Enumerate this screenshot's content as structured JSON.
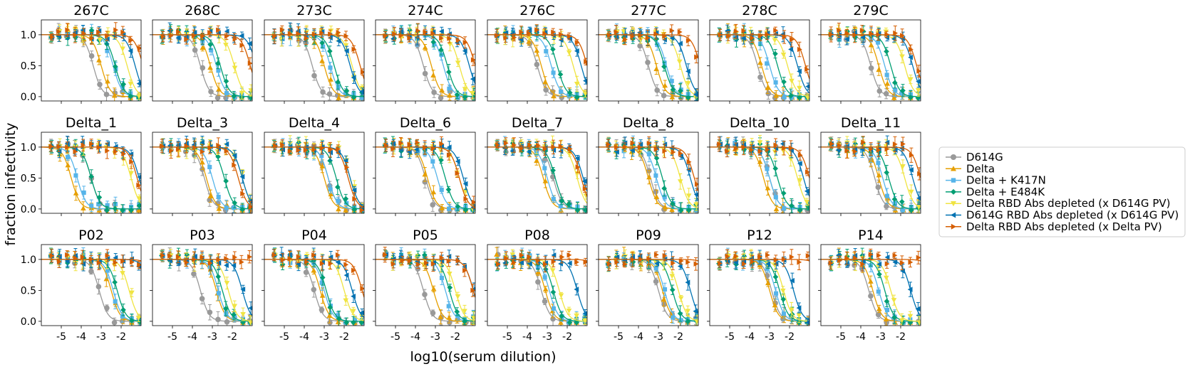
{
  "chart_data": {
    "type": "line",
    "figure": {
      "xlabel": "log10(serum dilution)",
      "ylabel": "fraction infectivity",
      "xlim": [
        -6.0,
        -1.0
      ],
      "ylim": [
        -0.07,
        1.24
      ],
      "x_ticks": [
        -5,
        -4,
        -3,
        -2
      ],
      "x_tick_labels": [
        "-5",
        "-4",
        "-3",
        "-2"
      ],
      "y_ticks": [
        0.0,
        0.5,
        1.0
      ],
      "y_tick_labels": [
        "0.0",
        "0.5",
        "1.0"
      ],
      "grid": false,
      "legend_position": "right"
    },
    "series": [
      {
        "name": "D614G",
        "color": "#999999",
        "marker": "circle"
      },
      {
        "name": "Delta",
        "color": "#E69F00",
        "marker": "triangle-up"
      },
      {
        "name": "Delta + K417N",
        "color": "#56B4E9",
        "marker": "square"
      },
      {
        "name": "Delta + E484K",
        "color": "#009E73",
        "marker": "diamond"
      },
      {
        "name": "Delta RBD Abs depleted (x D614G PV)",
        "color": "#F0E442",
        "marker": "triangle-down"
      },
      {
        "name": "D614G RBD Abs depleted (x D614G PV)",
        "color": "#0072B2",
        "marker": "triangle-left"
      },
      {
        "name": "Delta RBD Abs depleted (x Delta PV)",
        "color": "#D55E00",
        "marker": "triangle-right"
      }
    ],
    "panels": [
      {
        "title": "267C",
        "ic50": [
          -3.4,
          -3.0,
          -2.4,
          -2.3,
          -1.7,
          -1.3,
          -0.9
        ]
      },
      {
        "title": "268C",
        "ic50": [
          -3.6,
          -3.1,
          -2.8,
          -2.6,
          -1.9,
          -0.8,
          -1.1
        ]
      },
      {
        "title": "273C",
        "ic50": [
          -3.6,
          -3.0,
          -2.7,
          -2.5,
          -1.6,
          -1.7,
          -1.2
        ]
      },
      {
        "title": "274C",
        "ic50": [
          -3.6,
          -3.2,
          -2.6,
          -2.4,
          -1.8,
          -1.3,
          -1.0
        ]
      },
      {
        "title": "276C",
        "ic50": [
          -3.5,
          -3.3,
          -2.8,
          -2.5,
          -1.7,
          -1.3,
          -1.0
        ]
      },
      {
        "title": "277C",
        "ic50": [
          -3.5,
          -3.1,
          -2.6,
          -2.7,
          -1.9,
          -1.6,
          -0.9
        ]
      },
      {
        "title": "278C",
        "ic50": [
          -3.6,
          -3.4,
          -3.0,
          -2.6,
          -2.1,
          -1.6,
          -1.2
        ]
      },
      {
        "title": "279C",
        "ic50": [
          -3.5,
          -3.1,
          -2.8,
          -2.5,
          -1.8,
          -1.4,
          -1.2
        ]
      },
      {
        "title": "Delta_1",
        "ic50": [
          -3.5,
          -4.5,
          -4.2,
          -3.5,
          -1.5,
          -1.1,
          -1.2
        ]
      },
      {
        "title": "Delta_3",
        "ic50": [
          -3.4,
          -3.3,
          -3.0,
          -2.4,
          -1.5,
          -1.5,
          -1.7
        ]
      },
      {
        "title": "Delta_4",
        "ic50": [
          -2.8,
          -3.0,
          -2.8,
          -2.4,
          -1.7,
          -1.7,
          -1.8
        ]
      },
      {
        "title": "Delta_6",
        "ic50": [
          -3.5,
          -3.4,
          -2.9,
          -2.5,
          -1.8,
          -1.6,
          -1.8
        ]
      },
      {
        "title": "Delta_7",
        "ic50": [
          -2.7,
          -3.2,
          -3.0,
          -2.6,
          -1.5,
          -1.2,
          -1.3
        ]
      },
      {
        "title": "Delta_8",
        "ic50": [
          -3.4,
          -3.5,
          -3.1,
          -2.8,
          -1.9,
          -1.4,
          -1.2
        ]
      },
      {
        "title": "Delta_10",
        "ic50": [
          -3.0,
          -3.3,
          -3.0,
          -2.6,
          -1.6,
          -1.3,
          -1.0
        ]
      },
      {
        "title": "Delta_11",
        "ic50": [
          -3.3,
          -3.1,
          -2.9,
          -2.6,
          -1.8,
          -1.4,
          -1.0
        ]
      },
      {
        "title": "P02",
        "ic50": [
          -3.1,
          -2.5,
          -2.4,
          -2.2,
          -1.6,
          -0.5,
          -0.2
        ]
      },
      {
        "title": "P03",
        "ic50": [
          -3.6,
          -2.8,
          -2.7,
          -2.5,
          -2.2,
          -1.5,
          -0.2
        ]
      },
      {
        "title": "P04",
        "ic50": [
          -3.5,
          -3.2,
          -3.0,
          -2.9,
          -2.0,
          -1.6,
          -1.1
        ]
      },
      {
        "title": "P05",
        "ic50": [
          -3.6,
          -3.1,
          -2.5,
          -2.3,
          -2.0,
          -1.1,
          -1.1
        ]
      },
      {
        "title": "P08",
        "ic50": [
          -3.3,
          -3.1,
          -2.9,
          -2.7,
          -2.4,
          -1.5,
          -0.2
        ]
      },
      {
        "title": "P09",
        "ic50": [
          -3.0,
          -2.8,
          -2.7,
          -2.3,
          -2.0,
          -1.4,
          -0.2
        ]
      },
      {
        "title": "P12",
        "ic50": [
          -2.9,
          -3.0,
          -2.7,
          -2.5,
          -2.3,
          -1.8,
          -0.2
        ]
      },
      {
        "title": "P14",
        "ic50": [
          -3.6,
          -3.4,
          -3.1,
          -2.8,
          -2.5,
          -1.5,
          -0.2
        ]
      }
    ]
  }
}
